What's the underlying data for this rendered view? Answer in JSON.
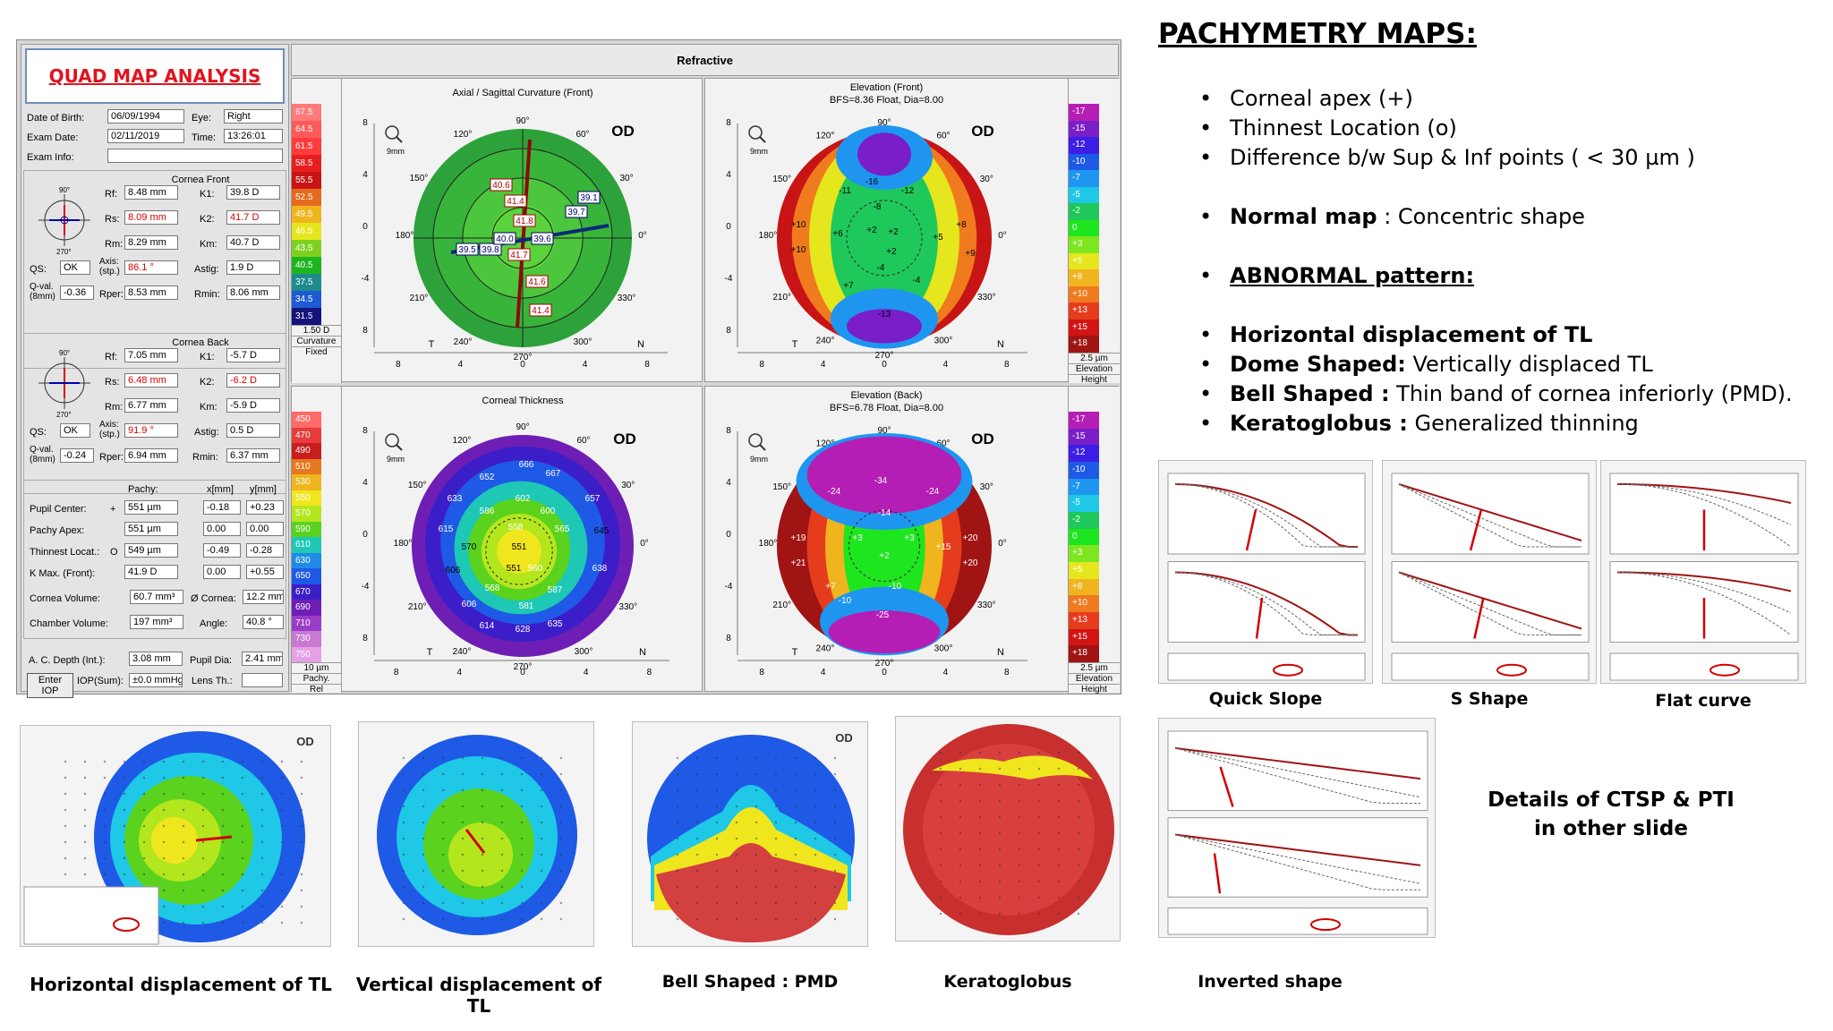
{
  "quad": {
    "title": "QUAD MAP ANALYSIS",
    "header": "Refractive",
    "patient": {
      "dob_label": "Date of Birth:",
      "dob": "06/09/1994",
      "eye_label": "Eye:",
      "eye": "Right",
      "exam_label": "Exam Date:",
      "exam": "02/11/2019",
      "time_label": "Time:",
      "time": "13:26:01",
      "info_label": "Exam Info:"
    },
    "front": {
      "head": "Cornea Front",
      "rf_label": "Rf:",
      "rf": "8.48 mm",
      "k1_label": "K1:",
      "k1": "39.8 D",
      "rs_label": "Rs:",
      "rs": "8.09 mm",
      "k2_label": "K2:",
      "k2": "41.7 D",
      "rm_label": "Rm:",
      "rm": "8.29 mm",
      "km_label": "Km:",
      "km": "40.7 D",
      "qs_label": "QS:",
      "qs": "OK",
      "axis_label": "Axis:\n(stp.)",
      "axis": "86.1 °",
      "astig_label": "Astig:",
      "astig": "1.9 D",
      "qval_label": "Q-val.\n(8mm)",
      "qval": "-0.36",
      "rper_label": "Rper:",
      "rper": "8.53 mm",
      "rmin_label": "Rmin:",
      "rmin": "8.06 mm"
    },
    "back": {
      "head": "Cornea Back",
      "rf": "7.05 mm",
      "k1": "-5.7 D",
      "rs": "6.48 mm",
      "k2": "-6.2 D",
      "rm": "6.77 mm",
      "km": "-5.9 D",
      "qs": "OK",
      "axis": "91.9 °",
      "astig": "0.5 D",
      "qval": "-0.24",
      "rper": "6.94 mm",
      "rmin_label": "Rmin:",
      "rmin": "6.37 mm"
    },
    "pachy": {
      "col1": "Pachy:",
      "col2": "x[mm]",
      "col3": "y[mm]",
      "rows": [
        {
          "label": "Pupil Center:",
          "sym": "+",
          "pachy": "551 µm",
          "x": "-0.18",
          "y": "+0.23"
        },
        {
          "label": "Pachy Apex:",
          "sym": "",
          "pachy": "551 µm",
          "x": "0.00",
          "y": "0.00"
        },
        {
          "label": "Thinnest Locat.:",
          "sym": "O",
          "pachy": "549 µm",
          "x": "-0.49",
          "y": "-0.28"
        },
        {
          "label": "K Max. (Front):",
          "sym": "",
          "pachy": "41.9 D",
          "x": "0.00",
          "y": "+0.55"
        }
      ]
    },
    "volume": {
      "cv_label": "Cornea Volume:",
      "cv": "60.7 mm³",
      "dc_label": "Ø Cornea:",
      "dc": "12.2 mm",
      "ch_label": "Chamber Volume:",
      "ch": "197 mm³",
      "ang_label": "Angle:",
      "ang": "40.8 °",
      "acd_label": "A. C. Depth (Int.):",
      "acd": "3.08 mm",
      "pd_label": "Pupil Dia:",
      "pd": "2.41 mm",
      "iop_btn": "Enter IOP",
      "iop_label": "IOP(Sum):",
      "iop": "±0.0 mmHg",
      "lens_label": "Lens Th.:"
    },
    "maps": {
      "axial_title": "Axial / Sagittal Curvature (Front)",
      "elev_front_title": "Elevation (Front)",
      "elev_front_sub": "BFS=8.36 Float, Dia=8.00",
      "thick_title": "Corneal Thickness",
      "elev_back_title": "Elevation (Back)",
      "elev_back_sub": "BFS=6.78 Float, Dia=8.00",
      "od": "OD",
      "zoom": "9mm",
      "axial_values": [
        "40.6",
        "41.4",
        "39.1",
        "41.8",
        "39.7",
        "39.5",
        "39.8",
        "40.0",
        "39.6",
        "41.7",
        "41.6",
        "41.4"
      ],
      "thick_values": [
        "666",
        "652",
        "667",
        "633",
        "602",
        "657",
        "586",
        "600",
        "615",
        "558",
        "565",
        "645",
        "570",
        "551",
        "606",
        "551",
        "560",
        "638",
        "568",
        "587",
        "606",
        "581",
        "614",
        "628",
        "635"
      ],
      "ef_values": [
        "-11",
        "-16",
        "-12",
        "-8",
        "+10",
        "+6",
        "+2",
        "+2",
        "+5",
        "+8",
        "+10",
        "+2",
        "-4",
        "+9",
        "+7",
        "-4",
        "-13"
      ],
      "eb_values": [
        "-24",
        "-34",
        "-24",
        "-14",
        "+19",
        "+3",
        "+3",
        "+15",
        "+20",
        "+21",
        "+2",
        "+20",
        "+7",
        "-10",
        "-10",
        "-25"
      ],
      "deg_90": "90°",
      "deg_270": "270°",
      "deg_180": "180°",
      "deg_0": "0°",
      "deg_60": "60°",
      "deg_120": "120°",
      "deg_150": "150°",
      "deg_30": "30°",
      "deg_210": "210°",
      "deg_240": "240°",
      "deg_300": "300°",
      "deg_330": "330°",
      "y_ticks": [
        "8",
        "4",
        "0",
        "-4",
        "8"
      ],
      "x_ticks": [
        "8",
        "4",
        "0",
        "4",
        "8"
      ],
      "t": "T",
      "n": "N"
    },
    "legends": {
      "curv": [
        "67.5",
        "64.5",
        "61.5",
        "58.5",
        "55.5",
        "52.5",
        "49.5",
        "46.5",
        "43.5",
        "40.5",
        "37.5",
        "34.5",
        "31.5"
      ],
      "curv_foot1": "1.50 D",
      "curv_foot2": "Curvature",
      "curv_foot3": "Fixed",
      "curv_colors": [
        "#ff7a7a",
        "#ff5a5a",
        "#ff3c3c",
        "#e81e1e",
        "#c81414",
        "#e66a1e",
        "#f0b41e",
        "#e6e61e",
        "#7ed21e",
        "#1eb41e",
        "#1e8c8c",
        "#1e5ad2",
        "#14147a"
      ],
      "elev": [
        "-17",
        "-15",
        "-12",
        "-10",
        "-7",
        "-5",
        "-2",
        "0",
        "+3",
        "+5",
        "+8",
        "+10",
        "+13",
        "+15",
        "+18"
      ],
      "elev_foot1": "2.5 µm",
      "elev_foot2": "Elevation",
      "elev_foot3": "Height",
      "elev_colors": [
        "#b41eb4",
        "#7a1ec8",
        "#3c1ee6",
        "#1e5ae6",
        "#1e96f0",
        "#1ec8e6",
        "#1ec85a",
        "#1ee61e",
        "#7ee61e",
        "#e6e61e",
        "#f0b41e",
        "#f07a1e",
        "#e63c1e",
        "#d21414",
        "#a01414"
      ],
      "thick": [
        "450",
        "470",
        "490",
        "510",
        "530",
        "550",
        "570",
        "590",
        "610",
        "630",
        "650",
        "670",
        "690",
        "710",
        "730",
        "750"
      ],
      "thick_foot1": "10 µm",
      "thick_foot2": "Pachy.",
      "thick_foot3": "Rel",
      "thick_colors": [
        "#ff6a6a",
        "#e63c3c",
        "#c81e1e",
        "#e6781e",
        "#f0b41e",
        "#f0e61e",
        "#b4e61e",
        "#5ad21e",
        "#1ec8b4",
        "#1e8ce6",
        "#1e5ae6",
        "#3c1ec8",
        "#6e1eb4",
        "#9a3cc8",
        "#c87ad2",
        "#e6a0e6"
      ]
    }
  },
  "right": {
    "heading": "PACHYMETRY MAPS:",
    "b1": "Corneal apex (+)",
    "b2": "Thinnest Location (o)",
    "b3": "Difference b/w Sup & Inf points ( < 30 µm )",
    "b4_bold": "Normal map",
    "b4_rest": " : Concentric shape",
    "b5": "ABNORMAL pattern:",
    "b6": "Horizontal displacement of TL",
    "b7_bold": "Dome Shaped:",
    "b7_rest": " Vertically displaced TL",
    "b8_bold": "Bell Shaped :",
    "b8_rest": "  Thin band of cornea inferiorly (PMD).",
    "b9_bold": "Keratoglobus :",
    "b9_rest": " Generalized thinning",
    "bullet": "•"
  },
  "captions": {
    "quick": "Quick Slope",
    "s": "S Shape",
    "flat": "Flat curve",
    "inverted": "Inverted shape",
    "details": "Details of CTSP & PTI in other slide",
    "horiz": "Horizontal displacement of TL",
    "vert": "Vertical displacement of TL",
    "bell": "Bell Shaped : PMD",
    "kerato": "Keratoglobus"
  },
  "bottom_maps": {
    "od": "OD"
  }
}
